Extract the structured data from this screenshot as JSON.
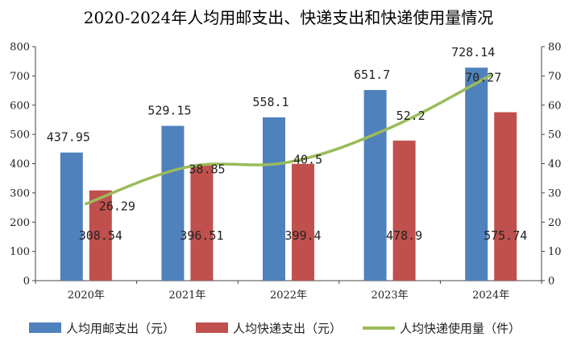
{
  "chart_data": {
    "type": "bar",
    "title": "2020-2024年人均用邮支出、快递支出和快递使用量情况",
    "categories": [
      "2020年",
      "2021年",
      "2022年",
      "2023年",
      "2024年"
    ],
    "series": [
      {
        "name": "人均用邮支出（元）",
        "type": "bar",
        "axis": "left",
        "color": "#4f81bd",
        "values": [
          437.95,
          529.15,
          558.1,
          651.7,
          728.14
        ],
        "labels": [
          "437.95",
          "529.15",
          "558.1",
          "651.7",
          "728.14"
        ]
      },
      {
        "name": "人均快递支出（元）",
        "type": "bar",
        "axis": "left",
        "color": "#c0504d",
        "values": [
          308.54,
          396.51,
          399.4,
          478.9,
          575.74
        ],
        "labels": [
          "308.54",
          "396.51",
          "399.4",
          "478.9",
          "575.74"
        ]
      },
      {
        "name": "人均快递使用量（件）",
        "type": "line",
        "axis": "right",
        "color": "#9bbb59",
        "values": [
          26.29,
          38.85,
          40.5,
          52.2,
          70.27
        ],
        "labels": [
          "26.29",
          "38.85",
          "40.5",
          "52.2",
          "70.27"
        ]
      }
    ],
    "y_left": {
      "min": 0,
      "max": 800,
      "ticks": [
        "0",
        "100",
        "200",
        "300",
        "400",
        "500",
        "600",
        "700",
        "800"
      ]
    },
    "y_right": {
      "min": 0,
      "max": 80,
      "ticks": [
        "0",
        "10",
        "20",
        "30",
        "40",
        "50",
        "60",
        "70",
        "80"
      ]
    },
    "grid": false,
    "legend_position": "bottom"
  }
}
